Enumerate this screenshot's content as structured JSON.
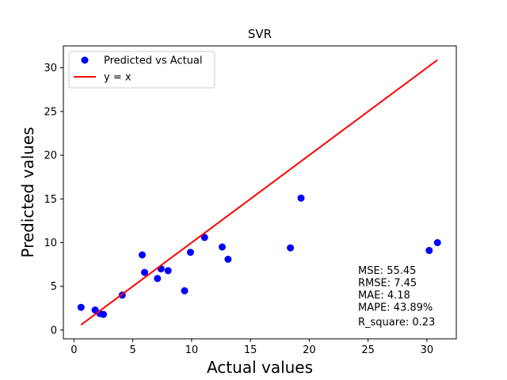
{
  "chart_data": {
    "type": "scatter",
    "title": "SVR",
    "xlabel": "Actual values",
    "ylabel": "Predicted values",
    "xlim": [
      -0.9,
      32.5
    ],
    "ylim": [
      -1.0,
      32.5
    ],
    "xticks": [
      0,
      5,
      10,
      15,
      20,
      25,
      30
    ],
    "yticks": [
      0,
      5,
      10,
      15,
      20,
      25,
      30
    ],
    "grid": false,
    "legend_position": "top-left",
    "series": [
      {
        "name": "Predicted vs Actual",
        "kind": "scatter",
        "color": "#0000ff",
        "points": [
          [
            0.6,
            2.6
          ],
          [
            1.8,
            2.3
          ],
          [
            2.2,
            1.9
          ],
          [
            2.5,
            1.8
          ],
          [
            4.1,
            4.0
          ],
          [
            5.8,
            8.6
          ],
          [
            6.0,
            6.6
          ],
          [
            7.1,
            5.9
          ],
          [
            7.4,
            7.0
          ],
          [
            8.0,
            6.8
          ],
          [
            9.4,
            4.5
          ],
          [
            9.9,
            8.9
          ],
          [
            11.1,
            10.6
          ],
          [
            12.6,
            9.5
          ],
          [
            13.1,
            8.1
          ],
          [
            18.4,
            9.4
          ],
          [
            19.3,
            15.1
          ],
          [
            30.2,
            9.1
          ],
          [
            30.9,
            10.0
          ]
        ]
      },
      {
        "name": "y = x",
        "kind": "line",
        "color": "#ff0000",
        "points": [
          [
            0.6,
            0.6
          ],
          [
            30.9,
            30.9
          ]
        ]
      }
    ],
    "annotation": [
      "MSE: 55.45",
      "RMSE: 7.45",
      "MAE: 4.18",
      "MAPE: 43.89%",
      "R_square: 0.23"
    ]
  }
}
